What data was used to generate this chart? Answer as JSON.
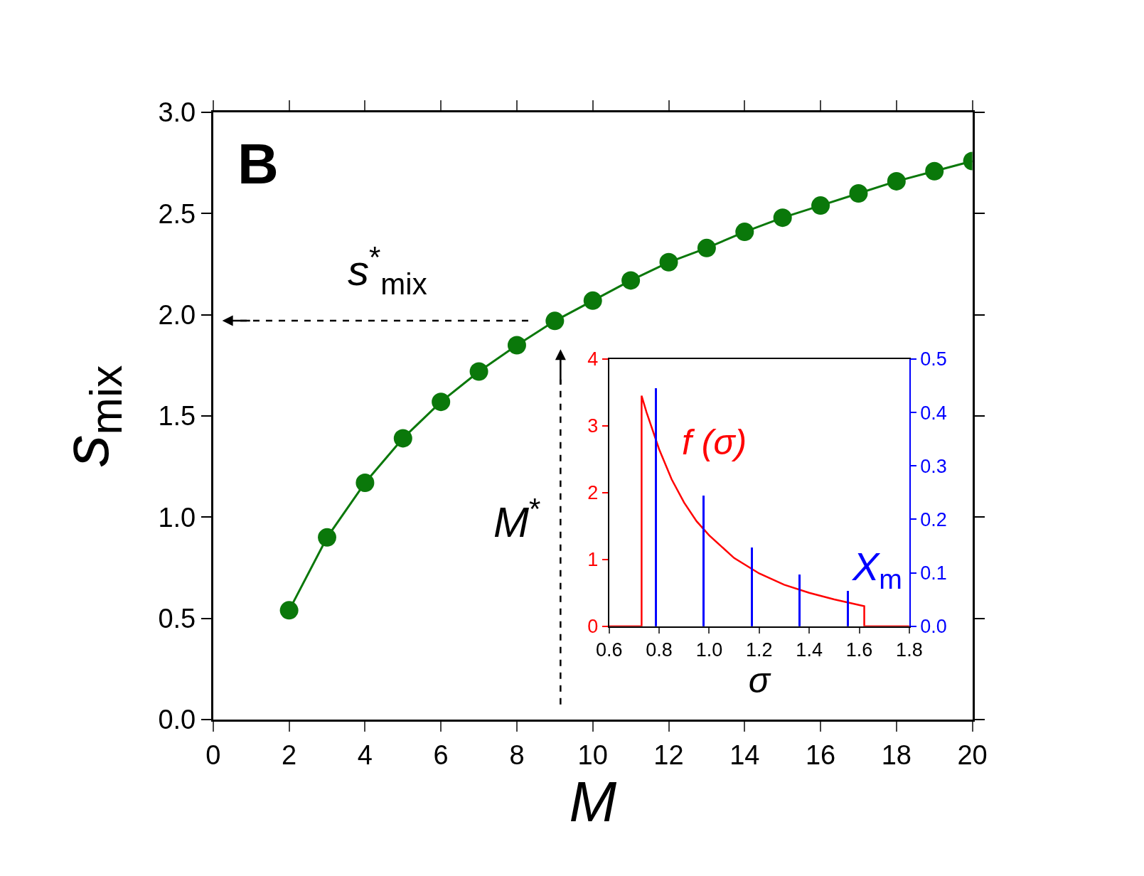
{
  "chart_data": [
    {
      "type": "line",
      "xlabel": "M",
      "ylabel": "s$_{mix}$",
      "marker": "circle",
      "x": [
        2,
        3,
        4,
        5,
        6,
        7,
        8,
        9,
        10,
        11,
        12,
        13,
        14,
        15,
        16,
        17,
        18,
        19,
        20
      ],
      "series": [
        {
          "color": "#0a780a",
          "values": [
            0.54,
            0.9,
            1.17,
            1.39,
            1.57,
            1.72,
            1.85,
            1.97,
            2.07,
            2.17,
            2.26,
            2.33,
            2.41,
            2.48,
            2.54,
            2.6,
            2.66,
            2.71,
            2.76
          ]
        }
      ],
      "xlim": [
        0,
        20
      ],
      "xticks": [
        0,
        2,
        4,
        6,
        8,
        10,
        12,
        14,
        16,
        18,
        20
      ],
      "ylim": [
        0,
        3
      ],
      "yticks": [
        {
          "value": 0,
          "label": "0.0"
        },
        {
          "value": 0.5,
          "label": "0.5"
        },
        {
          "value": 1,
          "label": "1.0"
        },
        {
          "value": 1.5,
          "label": "1.5"
        },
        {
          "value": 2,
          "label": "2.0"
        },
        {
          "value": 2.5,
          "label": "2.5"
        },
        {
          "value": 3,
          "label": "3.0"
        }
      ],
      "annotations": [
        "B",
        "s$^{*}$$_{mix}$",
        "M$^{*}$"
      ]
    },
    {
      "type": "line",
      "xlabel": "σ",
      "series": [
        {
          "name": "f (σ)",
          "color": "#ff0000",
          "x": [
            0.6,
            0.73,
            0.73,
            0.75,
            0.8,
            0.85,
            0.9,
            0.95,
            1.0,
            1.1,
            1.2,
            1.3,
            1.4,
            1.5,
            1.62,
            1.62,
            1.8
          ],
          "values": [
            0,
            0,
            3.45,
            3.2,
            2.65,
            2.2,
            1.85,
            1.57,
            1.36,
            1.02,
            0.79,
            0.62,
            0.5,
            0.4,
            0.3,
            0,
            0
          ]
        },
        {
          "name": "X$_{m}$",
          "type": "bar",
          "axis": "y2",
          "color": "#0000ff",
          "x": [
            0.785,
            0.977,
            1.169,
            1.361,
            1.553
          ],
          "values": [
            0.445,
            0.245,
            0.148,
            0.097,
            0.066
          ]
        }
      ],
      "xlim": [
        0.6,
        1.8
      ],
      "xticks": [
        0.6,
        0.8,
        {
          "value": 1.0,
          "label": "1.0"
        },
        1.2,
        1.4,
        1.6,
        1.8
      ],
      "ylim": [
        0,
        4
      ],
      "yticks": [
        0,
        1,
        2,
        3,
        4
      ],
      "y2lim": [
        0,
        0.5
      ],
      "y2ticks": [
        {
          "value": 0,
          "label": "0.0"
        },
        0.1,
        0.2,
        0.3,
        0.4,
        0.5
      ]
    }
  ]
}
